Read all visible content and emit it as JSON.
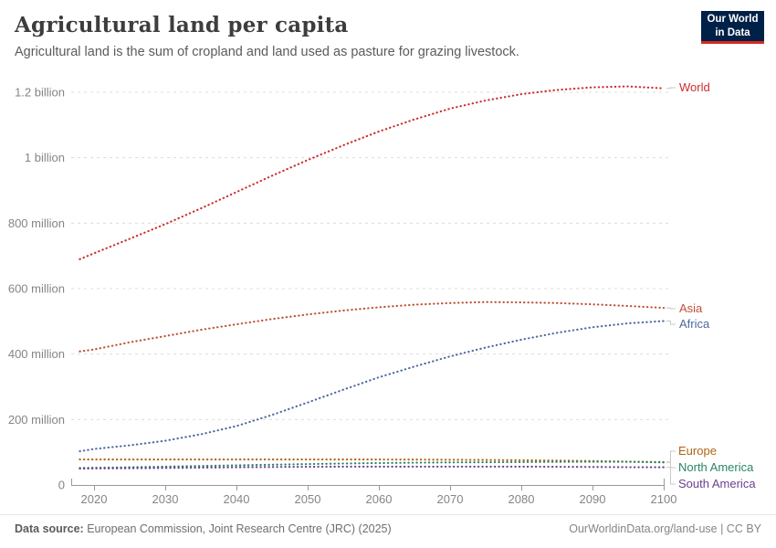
{
  "header": {
    "title": "Agricultural land per capita",
    "subtitle": "Agricultural land is the sum of cropland and land used as pasture for grazing livestock.",
    "logo": {
      "line1": "Our World",
      "line2": "in Data"
    }
  },
  "chart_data": {
    "type": "line",
    "line_style": "dotted",
    "title": "Agricultural land per capita",
    "xlabel": "",
    "ylabel": "",
    "grid": "dashed horizontal gridlines",
    "legend_position": "labels at right edge of lines",
    "xlim": [
      2018,
      2100
    ],
    "ylim": [
      0,
      1250
    ],
    "x": [
      2018,
      2020,
      2025,
      2030,
      2035,
      2040,
      2045,
      2050,
      2055,
      2060,
      2065,
      2070,
      2075,
      2080,
      2085,
      2090,
      2095,
      2100
    ],
    "x_ticks": [
      2020,
      2030,
      2040,
      2050,
      2060,
      2070,
      2080,
      2090,
      2100
    ],
    "y_ticks": [
      {
        "value": 0,
        "label": "0"
      },
      {
        "value": 200,
        "label": "200 million"
      },
      {
        "value": 400,
        "label": "400 million"
      },
      {
        "value": 600,
        "label": "600 million"
      },
      {
        "value": 800,
        "label": "800 million"
      },
      {
        "value": 1000,
        "label": "1 billion"
      },
      {
        "value": 1200,
        "label": "1.2 billion"
      }
    ],
    "y_unit": "millions",
    "series": [
      {
        "name": "World",
        "color": "#CB2D2F",
        "values": [
          690,
          708,
          752,
          797,
          845,
          895,
          945,
          993,
          1038,
          1080,
          1117,
          1150,
          1175,
          1194,
          1207,
          1215,
          1218,
          1212
        ]
      },
      {
        "name": "Asia",
        "color": "#C05038",
        "values": [
          408,
          414,
          436,
          455,
          474,
          491,
          507,
          521,
          533,
          543,
          551,
          556,
          559,
          558,
          556,
          552,
          547,
          541
        ]
      },
      {
        "name": "Africa",
        "color": "#4C6A9C",
        "values": [
          103,
          110,
          121,
          135,
          155,
          180,
          214,
          252,
          291,
          329,
          362,
          393,
          420,
          444,
          465,
          482,
          494,
          501
        ]
      },
      {
        "name": "Europe",
        "color": "#B16214",
        "values": [
          78,
          78,
          78,
          78,
          78,
          78,
          78,
          78,
          78,
          78,
          77.5,
          77,
          76.5,
          75.5,
          74.5,
          73,
          71.5,
          70
        ]
      },
      {
        "name": "North America",
        "color": "#2C8465",
        "values": [
          52,
          52.5,
          54,
          56,
          58,
          60,
          62,
          64,
          65.5,
          67,
          68,
          69,
          69.5,
          70,
          70.5,
          71,
          70.5,
          69
        ]
      },
      {
        "name": "South America",
        "color": "#6D3E91",
        "values": [
          50,
          50.5,
          51,
          52,
          53,
          54,
          55,
          55.5,
          56,
          56,
          56,
          56,
          56,
          56,
          55.5,
          55,
          54.5,
          54
        ]
      }
    ]
  },
  "footer": {
    "source_label": "Data source:",
    "source_text": " European Commission, Joint Research Centre (JRC) (2025)",
    "link_text": "OurWorldinData.org/land-use | CC BY"
  }
}
